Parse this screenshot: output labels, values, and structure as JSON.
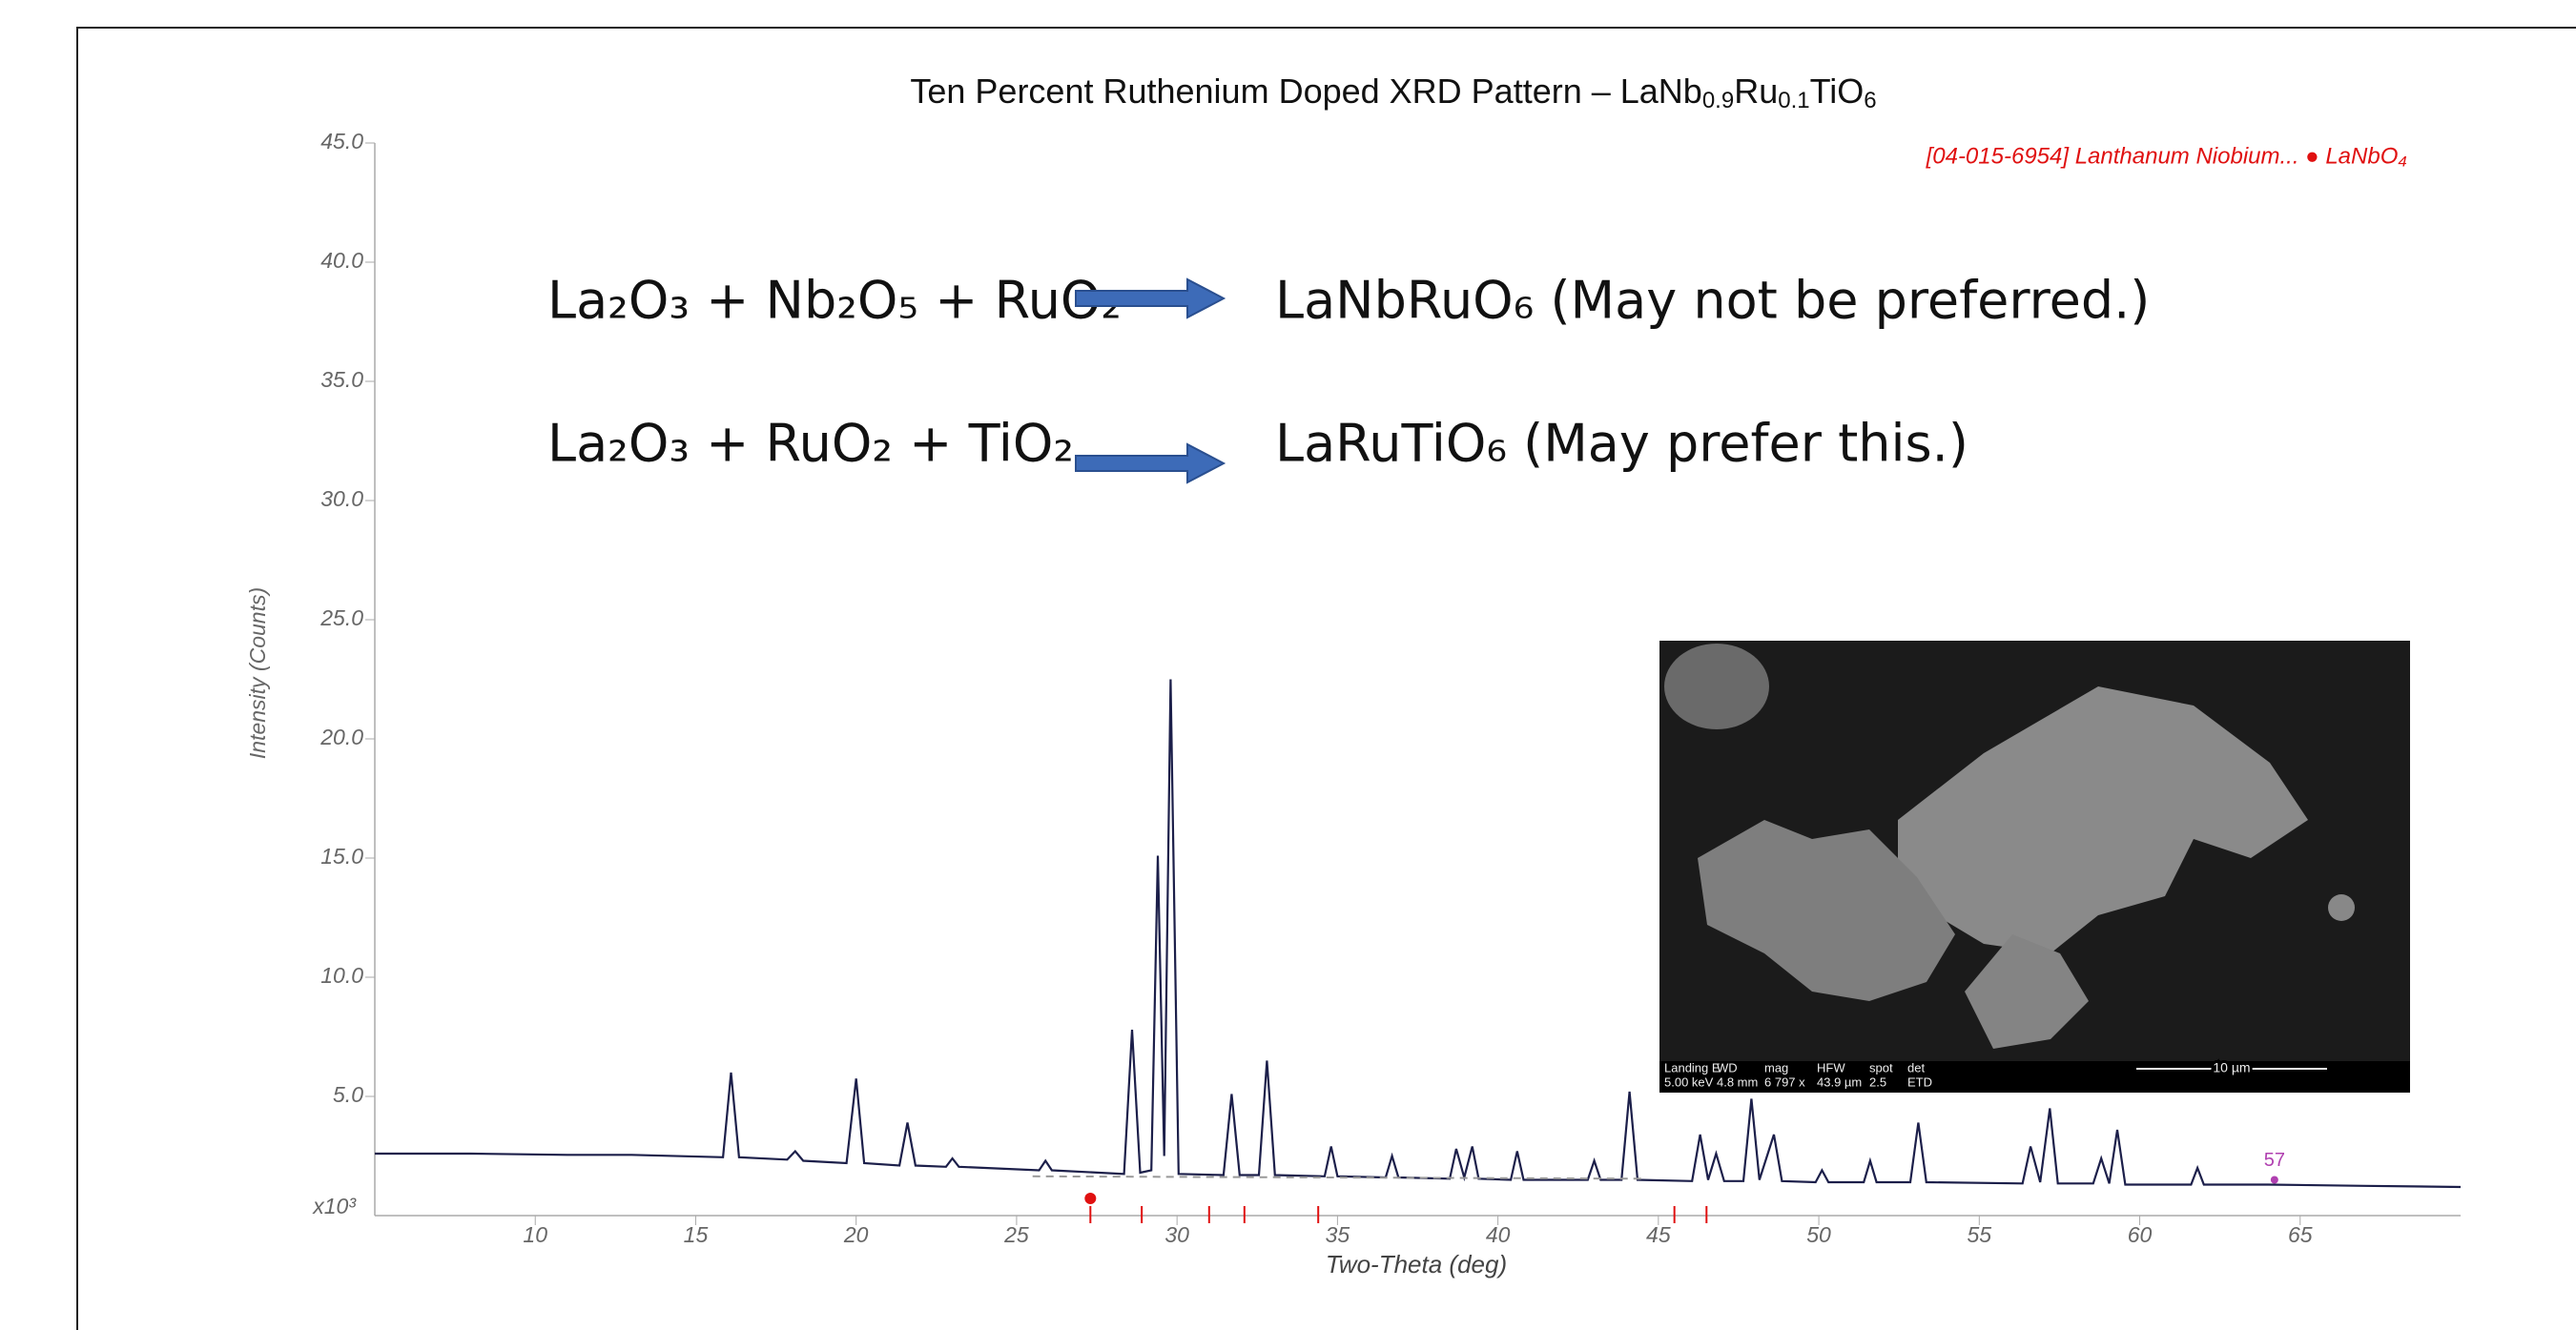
{
  "chart_data": {
    "type": "line",
    "title": [
      "Ten Percent Ruthenium Doped XRD Pattern – LaNb",
      "0.9",
      "Ru",
      "0.1",
      "TiO",
      "6"
    ],
    "x_label": "Two-Theta (deg)",
    "y_label": "Intensity (Counts)",
    "y_multiplier": "x10³",
    "xlim": [
      5,
      70
    ],
    "ylim": [
      0,
      45
    ],
    "xticks": [
      10,
      15,
      20,
      25,
      30,
      35,
      40,
      45,
      50,
      55,
      60,
      65
    ],
    "yticks": [
      {
        "value": 5,
        "label": "5.0"
      },
      {
        "value": 10,
        "label": "10.0"
      },
      {
        "value": 15,
        "label": "15.0"
      },
      {
        "value": 20,
        "label": "20.0"
      },
      {
        "value": 25,
        "label": "25.0"
      },
      {
        "value": 30,
        "label": "30.0"
      },
      {
        "value": 35,
        "label": "35.0"
      },
      {
        "value": 40,
        "label": "40.0"
      },
      {
        "value": 45,
        "label": "45.0"
      }
    ],
    "series": [
      {
        "color": "#1c1f4a",
        "x": [
          5,
          8,
          11,
          13,
          15.85,
          16.1,
          16.35,
          17.85,
          18.1,
          18.35,
          19.7,
          20.0,
          20.25,
          21.35,
          21.6,
          21.85,
          22.8,
          23.0,
          23.2,
          25.7,
          25.9,
          26.1,
          28.35,
          28.6,
          28.85,
          29.2,
          29.4,
          29.6,
          29.8,
          30.05,
          31.45,
          31.7,
          31.95,
          32.55,
          32.8,
          33.05,
          34.6,
          34.8,
          35.0,
          36.5,
          36.7,
          36.9,
          38.5,
          38.7,
          38.95,
          39.2,
          39.4,
          40.4,
          40.6,
          40.8,
          42.8,
          43.0,
          43.2,
          43.85,
          44.1,
          44.35,
          46.05,
          46.3,
          46.55,
          46.8,
          47.05,
          47.65,
          47.9,
          48.15,
          48.6,
          48.85,
          49.9,
          50.1,
          50.3,
          51.4,
          51.6,
          51.8,
          52.85,
          53.1,
          53.35,
          56.35,
          56.6,
          56.9,
          57.2,
          57.45,
          58.55,
          58.8,
          59.05,
          59.3,
          59.55,
          61.6,
          61.8,
          62.0,
          64,
          67,
          70
        ],
        "values": [
          2.6,
          2.6,
          2.55,
          2.55,
          2.45,
          6.0,
          2.45,
          2.35,
          2.7,
          2.3,
          2.2,
          5.75,
          2.2,
          2.1,
          3.9,
          2.1,
          2.05,
          2.4,
          2.05,
          1.9,
          2.3,
          1.9,
          1.75,
          7.8,
          1.8,
          1.9,
          15.1,
          2.5,
          22.5,
          1.75,
          1.7,
          5.1,
          1.7,
          1.7,
          6.5,
          1.7,
          1.65,
          2.9,
          1.65,
          1.6,
          2.5,
          1.6,
          1.55,
          2.8,
          1.6,
          2.9,
          1.55,
          1.5,
          2.7,
          1.5,
          1.5,
          2.3,
          1.5,
          1.5,
          5.2,
          1.5,
          1.45,
          3.4,
          1.5,
          2.6,
          1.45,
          1.45,
          4.9,
          1.5,
          3.4,
          1.45,
          1.4,
          1.9,
          1.4,
          1.4,
          2.3,
          1.4,
          1.4,
          3.9,
          1.4,
          1.35,
          2.9,
          1.4,
          4.5,
          1.35,
          1.35,
          2.4,
          1.35,
          3.6,
          1.3,
          1.3,
          2.0,
          1.3,
          1.3,
          1.25,
          1.2
        ]
      },
      {
        "color": "#999999",
        "dash": true,
        "x": [
          25.5,
          44.5
        ],
        "values": [
          1.65,
          1.55
        ]
      }
    ],
    "reference": {
      "name": "[04-015-6954] Lanthanum Niobium... ● LaNbO₄",
      "color": "#e01010",
      "x": [
        27.3,
        28.9,
        31.0,
        32.1,
        34.4,
        45.5,
        46.5
      ],
      "marker_x": 27.3
    },
    "annotation": {
      "text": "57",
      "x": 64.2,
      "y": 2.3,
      "color": "#b040b0"
    },
    "equations": [
      {
        "left": "La₂O₃ + Nb₂O₅ + RuO₂",
        "right": "LaNbRuO₆ (May not be preferred.)"
      },
      {
        "left": "La₂O₃ + RuO₂ + TiO₂",
        "right": "LaRuTiO₆ (May prefer this.)"
      }
    ],
    "inset": {
      "info": [
        [
          "Landing E",
          "5.00 keV"
        ],
        [
          "WD",
          "4.8 mm"
        ],
        [
          "mag",
          "6 797 x"
        ],
        [
          "HFW",
          "43.9 µm"
        ],
        [
          "spot",
          "2.5"
        ],
        [
          "det",
          "ETD"
        ]
      ],
      "scale_bar": "10 µm"
    }
  }
}
